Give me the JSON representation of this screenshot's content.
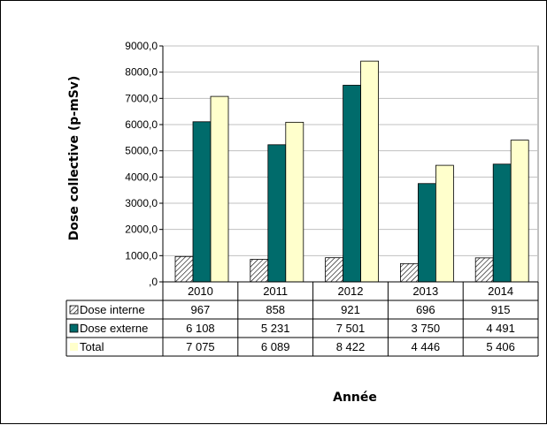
{
  "chart_data": {
    "type": "bar",
    "title": "",
    "xlabel": "Année",
    "ylabel": "Dose collective (p-mSv)",
    "ylim": [
      0,
      9000
    ],
    "ytick_step": 1000,
    "ytick_labels": [
      ",0",
      "1000,0",
      "2000,0",
      "3000,0",
      "4000,0",
      "5000,0",
      "6000,0",
      "7000,0",
      "8000,0",
      "9000,0"
    ],
    "grid": true,
    "legend": "data-table",
    "categories": [
      "2010",
      "2011",
      "2012",
      "2013",
      "2014"
    ],
    "series": [
      {
        "name": "Dose interne",
        "color": "#ffffff",
        "pattern": "hatch",
        "values": [
          967,
          858,
          921,
          696,
          915
        ],
        "labels": [
          "967",
          "858",
          "921",
          "696",
          "915"
        ]
      },
      {
        "name": "Dose externe",
        "color": "#006b6b",
        "values": [
          6108,
          5231,
          7501,
          3750,
          4491
        ],
        "labels": [
          "6 108",
          "5 231",
          "7 501",
          "3 750",
          "4 491"
        ]
      },
      {
        "name": "Total",
        "color": "#ffffcc",
        "values": [
          7075,
          6089,
          8422,
          4446,
          5406
        ],
        "labels": [
          "7 075",
          "6 089",
          "8 422",
          "4 446",
          "5 406"
        ]
      }
    ]
  }
}
